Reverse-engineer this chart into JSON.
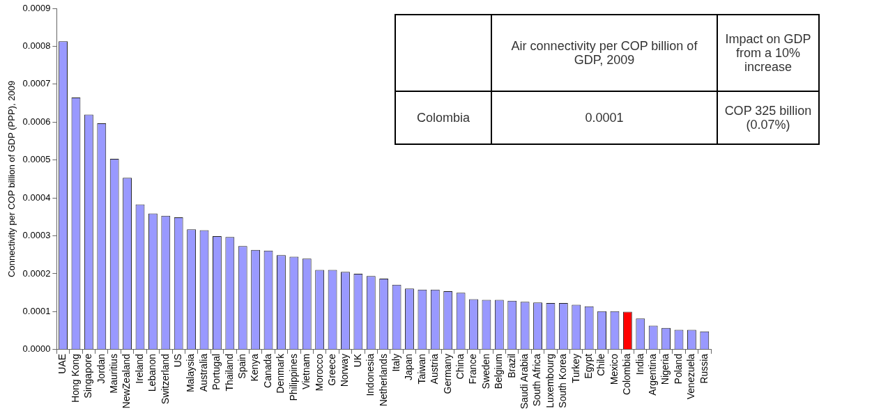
{
  "chart_data": {
    "type": "bar",
    "ylabel": "Connectivity per COP billion of GDP (PPP), 2009",
    "categories": [
      "UAE",
      "Hong Kong",
      "Singapore",
      "Jordan",
      "Mauritius",
      "NewZealand",
      "Ireland",
      "Lebanon",
      "Switzerland",
      "US",
      "Malaysia",
      "Australia",
      "Portugal",
      "Thailand",
      "Spain",
      "Kenya",
      "Canada",
      "Denmark",
      "Philippines",
      "Vietnam",
      "Morocco",
      "Greece",
      "Norway",
      "UK",
      "Indonesia",
      "Netherlands",
      "Italy",
      "Japan",
      "Taiwan",
      "Austria",
      "Germany",
      "China",
      "France",
      "Sweden",
      "Belgium",
      "Brazil",
      "Saudi Arabia",
      "South Africa",
      "Luxembourg",
      "South Korea",
      "Turkey",
      "Egypt",
      "Chile",
      "Mexico",
      "Colombia",
      "India",
      "Argentina",
      "Nigeria",
      "Poland",
      "Venezuela",
      "Russia"
    ],
    "values": [
      0.000813,
      0.000665,
      0.00062,
      0.000597,
      0.000503,
      0.000453,
      0.000383,
      0.000359,
      0.000353,
      0.000349,
      0.000317,
      0.000315,
      0.000299,
      0.000297,
      0.000273,
      0.000263,
      0.000261,
      0.000249,
      0.000245,
      0.00024,
      0.00021,
      0.00021,
      0.000205,
      0.0002,
      0.000194,
      0.000187,
      0.000171,
      0.000161,
      0.000158,
      0.000158,
      0.000154,
      0.00015,
      0.000133,
      0.000131,
      0.000131,
      0.000129,
      0.000126,
      0.000124,
      0.000123,
      0.000123,
      0.000118,
      0.000114,
      0.000101,
      0.000101,
      0.0001,
      8.2e-05,
      6.3e-05,
      5.7e-05,
      5.2e-05,
      5.2e-05,
      4.8e-05
    ],
    "colors": [
      "#9999ff",
      "#9999ff",
      "#9999ff",
      "#9999ff",
      "#9999ff",
      "#9999ff",
      "#9999ff",
      "#9999ff",
      "#9999ff",
      "#9999ff",
      "#9999ff",
      "#9999ff",
      "#9999ff",
      "#9999ff",
      "#9999ff",
      "#9999ff",
      "#9999ff",
      "#9999ff",
      "#9999ff",
      "#9999ff",
      "#9999ff",
      "#9999ff",
      "#9999ff",
      "#9999ff",
      "#9999ff",
      "#9999ff",
      "#9999ff",
      "#9999ff",
      "#9999ff",
      "#9999ff",
      "#9999ff",
      "#9999ff",
      "#9999ff",
      "#9999ff",
      "#9999ff",
      "#9999ff",
      "#9999ff",
      "#9999ff",
      "#9999ff",
      "#9999ff",
      "#9999ff",
      "#9999ff",
      "#9999ff",
      "#9999ff",
      "#ff0000",
      "#9999ff",
      "#9999ff",
      "#9999ff",
      "#9999ff",
      "#9999ff",
      "#9999ff"
    ],
    "ylim": [
      0,
      0.0009
    ],
    "yticks": [
      {
        "value": 0,
        "label": "0.0000"
      },
      {
        "value": 0.0001,
        "label": "0.0001"
      },
      {
        "value": 0.0002,
        "label": "0.0002"
      },
      {
        "value": 0.0003,
        "label": "0.0003"
      },
      {
        "value": 0.0004,
        "label": "0.0004"
      },
      {
        "value": 0.0005,
        "label": "0.0005"
      },
      {
        "value": 0.0006,
        "label": "0.0006"
      },
      {
        "value": 0.0007,
        "label": "0.0007"
      },
      {
        "value": 0.0008,
        "label": "0.0008"
      },
      {
        "value": 0.0009,
        "label": "0.0009"
      }
    ],
    "annotations": [
      "Air connectivity per COP billion of GDP, 2009",
      "Impact on GDP from a 10% increase",
      "Colombia",
      "0.0001",
      "COP 325 billion (0.07%)"
    ],
    "legend": false,
    "grid": false
  }
}
